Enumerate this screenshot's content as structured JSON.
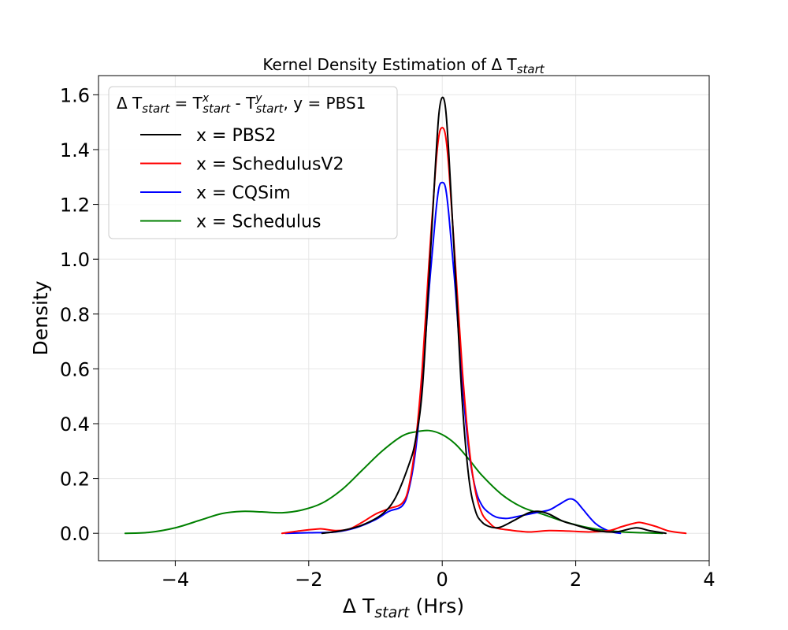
{
  "chart_data": {
    "type": "line",
    "title": "Kernel Density Estimation of Δ T",
    "title_sub": "start",
    "xlabel_main": "Δ T",
    "xlabel_sub": "start",
    "xlabel_tail": " (Hrs)",
    "ylabel": "Density",
    "xlim": [
      -5.15,
      4.0
    ],
    "ylim": [
      -0.1,
      1.67
    ],
    "xticks": [
      -4,
      -2,
      0,
      2,
      4
    ],
    "xtick_labels": [
      "−4",
      "−2",
      "0",
      "2",
      "4"
    ],
    "yticks": [
      0.0,
      0.2,
      0.4,
      0.6,
      0.8,
      1.0,
      1.2,
      1.4,
      1.6
    ],
    "ytick_labels": [
      "0.0",
      "0.2",
      "0.4",
      "0.6",
      "0.8",
      "1.0",
      "1.2",
      "1.4",
      "1.6"
    ],
    "grid": true,
    "legend_position": "top-left",
    "legend_title": {
      "p1": "Δ T",
      "p1_sub": "start",
      "p2": " = T",
      "p2_sup": "x",
      "p2_sub": "start",
      "p3": " - T",
      "p3_sup": "y",
      "p3_sub": "start",
      "p4": ", y = PBS1"
    },
    "series": [
      {
        "name": "x = PBS2",
        "color": "#000000",
        "x": [
          -1.8,
          -1.5,
          -1.2,
          -0.9,
          -0.7,
          -0.5,
          -0.4,
          -0.3,
          -0.2,
          -0.1,
          -0.05,
          0.0,
          0.05,
          0.1,
          0.2,
          0.3,
          0.4,
          0.5,
          0.6,
          0.7,
          0.8,
          0.9,
          1.1,
          1.3,
          1.45,
          1.6,
          1.8,
          2.0,
          2.3,
          2.6,
          2.9,
          3.1,
          3.35
        ],
        "y": [
          0.0,
          0.01,
          0.03,
          0.07,
          0.13,
          0.25,
          0.34,
          0.52,
          0.92,
          1.35,
          1.53,
          1.59,
          1.55,
          1.38,
          0.93,
          0.48,
          0.2,
          0.08,
          0.04,
          0.025,
          0.02,
          0.025,
          0.05,
          0.075,
          0.08,
          0.07,
          0.045,
          0.03,
          0.01,
          0.005,
          0.02,
          0.01,
          0.0
        ]
      },
      {
        "name": "x = SchedulusV2",
        "color": "#ff0000",
        "x": [
          -2.4,
          -2.1,
          -1.9,
          -1.8,
          -1.6,
          -1.4,
          -1.2,
          -1.0,
          -0.8,
          -0.6,
          -0.5,
          -0.4,
          -0.3,
          -0.2,
          -0.1,
          -0.05,
          0.0,
          0.05,
          0.1,
          0.2,
          0.3,
          0.4,
          0.5,
          0.6,
          0.7,
          0.8,
          1.0,
          1.3,
          1.6,
          1.9,
          2.2,
          2.5,
          2.7,
          2.9,
          3.0,
          3.2,
          3.4,
          3.65
        ],
        "y": [
          0.0,
          0.01,
          0.015,
          0.016,
          0.01,
          0.015,
          0.04,
          0.07,
          0.09,
          0.11,
          0.17,
          0.33,
          0.6,
          0.98,
          1.33,
          1.45,
          1.48,
          1.45,
          1.33,
          0.97,
          0.6,
          0.32,
          0.15,
          0.07,
          0.04,
          0.02,
          0.012,
          0.005,
          0.01,
          0.008,
          0.005,
          0.01,
          0.025,
          0.038,
          0.038,
          0.025,
          0.008,
          0.0
        ]
      },
      {
        "name": "x = CQSim",
        "color": "#0000ff",
        "x": [
          -2.35,
          -2.0,
          -1.6,
          -1.3,
          -1.0,
          -0.8,
          -0.6,
          -0.5,
          -0.4,
          -0.3,
          -0.2,
          -0.1,
          -0.05,
          0.0,
          0.05,
          0.1,
          0.2,
          0.3,
          0.4,
          0.5,
          0.6,
          0.7,
          0.8,
          0.9,
          1.0,
          1.2,
          1.4,
          1.6,
          1.75,
          1.9,
          2.0,
          2.1,
          2.3,
          2.5,
          2.67
        ],
        "y": [
          0.0,
          0.002,
          0.005,
          0.02,
          0.05,
          0.08,
          0.1,
          0.16,
          0.3,
          0.55,
          0.88,
          1.16,
          1.26,
          1.28,
          1.26,
          1.16,
          0.88,
          0.55,
          0.3,
          0.16,
          0.1,
          0.075,
          0.06,
          0.055,
          0.055,
          0.065,
          0.075,
          0.085,
          0.105,
          0.125,
          0.118,
          0.09,
          0.035,
          0.008,
          0.0
        ]
      },
      {
        "name": "x = Schedulus",
        "color": "#008000",
        "x": [
          -4.75,
          -4.4,
          -4.0,
          -3.6,
          -3.3,
          -3.0,
          -2.7,
          -2.4,
          -2.1,
          -1.8,
          -1.5,
          -1.2,
          -0.9,
          -0.6,
          -0.4,
          -0.2,
          0.0,
          0.2,
          0.4,
          0.6,
          0.9,
          1.2,
          1.5,
          1.8,
          2.1,
          2.4,
          2.7,
          3.0,
          3.3
        ],
        "y": [
          0.0,
          0.003,
          0.02,
          0.05,
          0.072,
          0.08,
          0.078,
          0.075,
          0.085,
          0.11,
          0.16,
          0.23,
          0.3,
          0.355,
          0.37,
          0.375,
          0.36,
          0.325,
          0.27,
          0.21,
          0.14,
          0.095,
          0.07,
          0.045,
          0.025,
          0.012,
          0.005,
          0.002,
          0.0
        ]
      }
    ]
  }
}
